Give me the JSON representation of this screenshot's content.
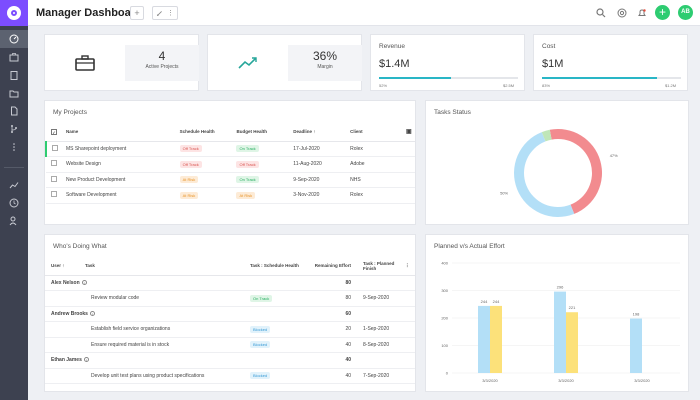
{
  "header": {
    "title": "Manager Dashboard",
    "avatar_initials": "AB",
    "add_label": "+"
  },
  "kpis": {
    "projects": {
      "value": "4",
      "label": "Active Projects"
    },
    "margin": {
      "value": "36%",
      "label": "Margin"
    }
  },
  "revenue": {
    "title": "Revenue",
    "value": "$1.4M",
    "low": "52%",
    "high": "$2.5M",
    "progress": 0.52
  },
  "cost": {
    "title": "Cost",
    "value": "$1M",
    "low": "83%",
    "high": "$1.2M",
    "progress": 0.83
  },
  "projects": {
    "title": "My Projects",
    "columns": [
      "Name",
      "Schedule Health",
      "Budget Health",
      "Deadline",
      "Client"
    ],
    "rows": [
      {
        "name": "MS Sharepoint deployment",
        "schedule": "Off Track",
        "budget": "On Track",
        "deadline": "17-Jul-2020",
        "client": "Rolex"
      },
      {
        "name": "Website Design",
        "schedule": "Off Track",
        "budget": "Off Track",
        "deadline": "11-Aug-2020",
        "client": "Adobe"
      },
      {
        "name": "New Product Development",
        "schedule": "At Risk",
        "budget": "On Track",
        "deadline": "9-Sep-2020",
        "client": "NHS"
      },
      {
        "name": "Software Development",
        "schedule": "At Risk",
        "budget": "At Risk",
        "deadline": "3-Nov-2020",
        "client": "Rolex"
      }
    ]
  },
  "tasks_status": {
    "title": "Tasks Status",
    "slices": [
      {
        "label": "47%",
        "value": 47,
        "color": "#f28b8f"
      },
      {
        "label": "50%",
        "value": 50,
        "color": "#b3dff7"
      },
      {
        "label": "",
        "value": 3,
        "color": "#bfe6b8"
      }
    ]
  },
  "whos_doing": {
    "title": "Who's Doing What",
    "columns": [
      "User",
      "Task",
      "Task : Schedule Health",
      "Remaining Effort",
      "Task : Planned Finish"
    ],
    "groups": [
      {
        "user": "Alex Nelson",
        "total": "80",
        "tasks": [
          {
            "task": "Review modular code",
            "health": "On Track",
            "effort": "80",
            "finish": "9-Sep-2020"
          }
        ]
      },
      {
        "user": "Andrew Brooks",
        "total": "60",
        "tasks": [
          {
            "task": "Establish field service organizations",
            "health": "Blocked",
            "effort": "20",
            "finish": "1-Sep-2020"
          },
          {
            "task": "Ensure required material is in stock",
            "health": "Blocked",
            "effort": "40",
            "finish": "8-Sep-2020"
          }
        ]
      },
      {
        "user": "Ethan James",
        "total": "40",
        "tasks": [
          {
            "task": "Develop unit test plans using product specifications",
            "health": "Blocked",
            "effort": "40",
            "finish": "7-Sep-2020"
          }
        ]
      }
    ]
  },
  "chart_data": {
    "type": "bar",
    "title": "Planned v/s Actual Effort",
    "categories": [
      "3/3/2020",
      "3/3/2020",
      "3/3/2020"
    ],
    "ylim": [
      0,
      400
    ],
    "yticks": [
      0,
      100,
      200,
      300,
      400
    ],
    "series": [
      {
        "values": [
          244,
          296,
          198
        ],
        "color": "#b3dff7"
      },
      {
        "values": [
          244,
          221,
          null
        ],
        "color": "#fce17a"
      }
    ]
  }
}
